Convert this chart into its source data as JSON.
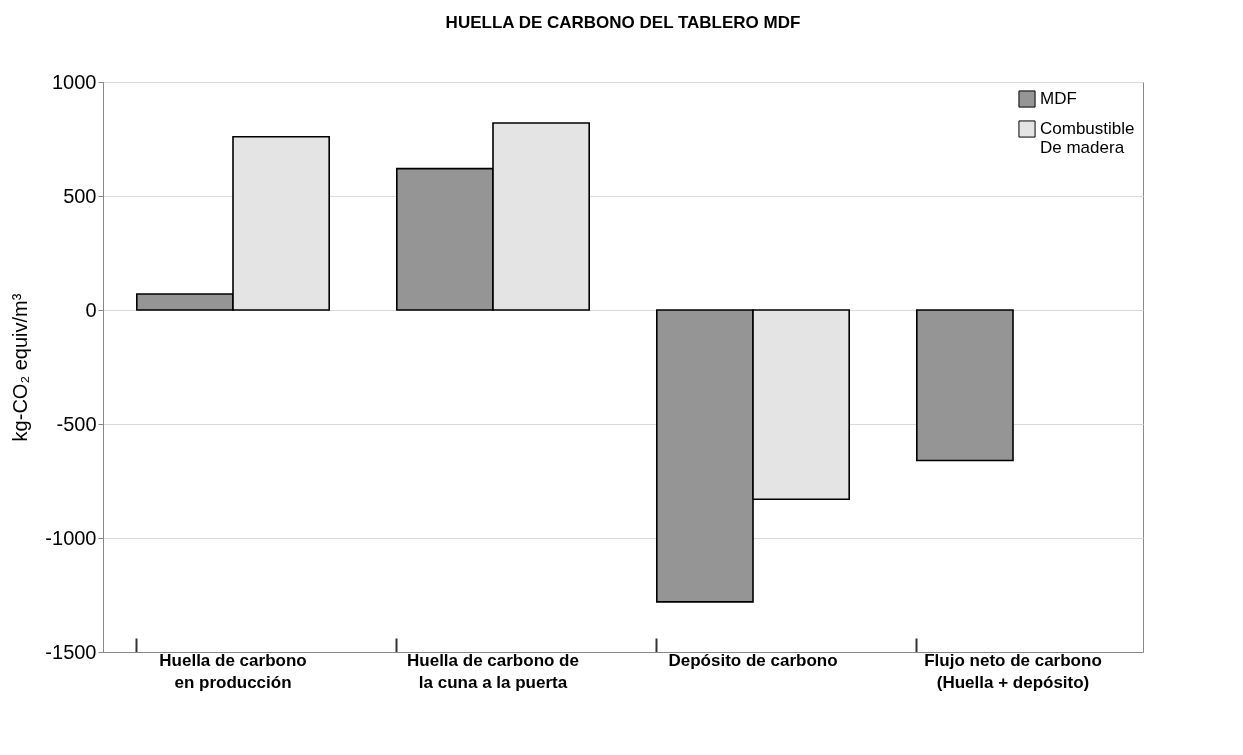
{
  "chart_data": {
    "type": "bar",
    "title": "HUELLA DE CARBONO DEL TABLERO MDF",
    "ylabel": "kg-CO₂ equiv/m³",
    "categories": [
      "Huella de carbono en producción",
      "Huella de carbono de la cuna a la puerta",
      "Depósito de carbono",
      "Flujo neto de carbono (Huella + depósito)"
    ],
    "series": [
      {
        "name": "MDF",
        "color": "#959595",
        "values": [
          70,
          620,
          -1280,
          -660
        ]
      },
      {
        "name": "Combustible De madera",
        "color": "#e4e4e4",
        "values": [
          760,
          820,
          -830,
          null
        ]
      }
    ],
    "ylim": [
      -1500,
      1000
    ],
    "yticks": [
      -1500,
      -1000,
      -500,
      0,
      500,
      1000
    ],
    "grid": "y",
    "legend": "top right"
  }
}
